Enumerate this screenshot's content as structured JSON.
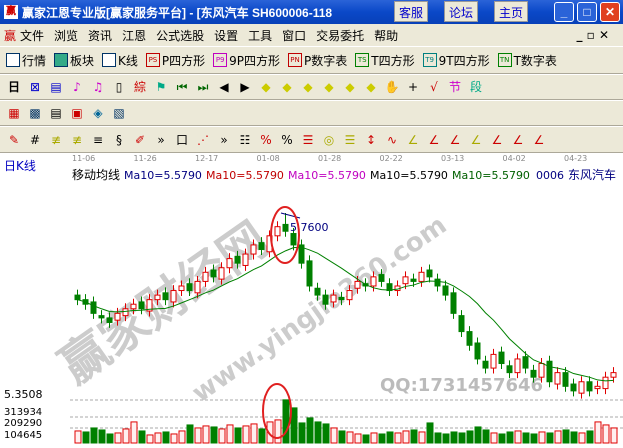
{
  "window": {
    "title": "赢家江恩专业版[赢家服务平台] - [东风汽车   SH600006-118",
    "buttons": [
      "客服",
      "论坛",
      "主页"
    ]
  },
  "menu": [
    "文件",
    "浏览",
    "资讯",
    "江恩",
    "公式选股",
    "设置",
    "工具",
    "窗口",
    "交易委托",
    "帮助"
  ],
  "toolbar1": [
    {
      "label": "行情",
      "icon": "grid-icon"
    },
    {
      "label": "板块",
      "icon": "blocks-icon"
    },
    {
      "label": "K线",
      "icon": "candles-icon"
    },
    {
      "label": "P四方形",
      "badge": "PS",
      "color": "#c00000"
    },
    {
      "label": "9P四方形",
      "badge": "P9",
      "color": "#c000c0"
    },
    {
      "label": "P数字表",
      "badge": "PN",
      "color": "#c00000"
    },
    {
      "label": "T四方形",
      "badge": "TS",
      "color": "#008000"
    },
    {
      "label": "9T四方形",
      "badge": "T9",
      "color": "#008080"
    },
    {
      "label": "T数字表",
      "badge": "TN",
      "color": "#008000"
    }
  ],
  "toolbar2": {
    "period": "日"
  },
  "chart": {
    "period_label": "日K线",
    "indicator": "移动均线",
    "ma_labels": [
      {
        "text": "Ma10=5.5790",
        "color": "#000080"
      },
      {
        "text": "Ma10=5.5790",
        "color": "#c00000"
      },
      {
        "text": "Ma10=5.5790",
        "color": "#c000c0"
      },
      {
        "text": "Ma10=5.5790",
        "color": "#000000"
      },
      {
        "text": "Ma10=5.5790",
        "color": "#006000"
      }
    ],
    "code": "0006",
    "name": "东风汽车",
    "dates": [
      "11-06",
      "11-26",
      "12-17",
      "01-08",
      "01-28",
      "02-22",
      "03-13",
      "04-02",
      "04-23"
    ],
    "high_label": "5.7600",
    "price_label": "5.3508",
    "volume_labels": [
      "313934",
      "209290",
      "104645"
    ],
    "watermark": "赢家财经网",
    "watermark_url": "www.yingjia360.com",
    "qq": "QQ:1731457646",
    "up_color": "#e00000",
    "down_color": "#008000",
    "ma_color": "#008000"
  },
  "chart_data": {
    "type": "candlestick",
    "closes": [
      5.57,
      5.56,
      5.54,
      5.53,
      5.52,
      5.54,
      5.55,
      5.56,
      5.55,
      5.57,
      5.58,
      5.57,
      5.59,
      5.6,
      5.59,
      5.61,
      5.63,
      5.62,
      5.64,
      5.66,
      5.65,
      5.67,
      5.69,
      5.68,
      5.71,
      5.73,
      5.72,
      5.69,
      5.65,
      5.6,
      5.58,
      5.56,
      5.58,
      5.57,
      5.59,
      5.61,
      5.6,
      5.62,
      5.61,
      5.59,
      5.6,
      5.62,
      5.61,
      5.63,
      5.62,
      5.6,
      5.58,
      5.54,
      5.5,
      5.47,
      5.44,
      5.42,
      5.45,
      5.43,
      5.41,
      5.44,
      5.42,
      5.4,
      5.43,
      5.39,
      5.41,
      5.38,
      5.37,
      5.39,
      5.37,
      5.38,
      5.4,
      5.41
    ],
    "volumes": [
      120000,
      110000,
      150000,
      130000,
      90000,
      100000,
      140000,
      210000,
      120000,
      80000,
      100000,
      110000,
      90000,
      120000,
      180000,
      150000,
      170000,
      160000,
      140000,
      180000,
      150000,
      170000,
      190000,
      140000,
      210000,
      230000,
      430000,
      350000,
      200000,
      250000,
      210000,
      190000,
      150000,
      120000,
      110000,
      90000,
      80000,
      100000,
      90000,
      110000,
      100000,
      120000,
      130000,
      110000,
      200000,
      100000,
      90000,
      110000,
      100000,
      120000,
      160000,
      130000,
      100000,
      90000,
      110000,
      120000,
      100000,
      90000,
      110000,
      100000,
      120000,
      130000,
      110000,
      100000,
      120000,
      210000,
      180000,
      150000
    ],
    "peak": 5.76,
    "ylim": [
      5.3508,
      5.8
    ]
  }
}
